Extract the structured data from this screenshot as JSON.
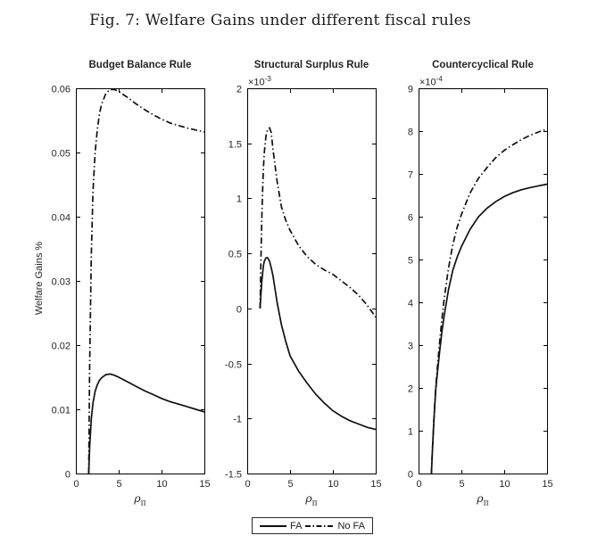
{
  "figure_title": "Fig. 7: Welfare Gains under different fiscal rules",
  "ylabel": "Welfare Gains %",
  "xaxis": {
    "rho": "ρ",
    "pi": "π"
  },
  "legend": {
    "fa_label": "FA",
    "nofa_label": "No FA"
  },
  "colors": {
    "line": "#101010",
    "axis": "#000000",
    "text": "#262626"
  },
  "chart_data": [
    {
      "type": "line",
      "title": "Budget Balance Rule",
      "xlabel": "ρ_π",
      "ylabel": "Welfare Gains %",
      "xlim": [
        0,
        15
      ],
      "ylim": [
        0,
        0.06
      ],
      "xticks": [
        0,
        5,
        10,
        15
      ],
      "xtick_labels": [
        "0",
        "5",
        "10",
        "15"
      ],
      "yticks": [
        0,
        0.01,
        0.02,
        0.03,
        0.04,
        0.05,
        0.06
      ],
      "ytick_labels": [
        "0",
        "0.01",
        "0.02",
        "0.03",
        "0.04",
        "0.05",
        "0.06"
      ],
      "x": [
        1.5,
        1.6,
        1.8,
        2,
        2.25,
        2.5,
        2.75,
        3,
        3.5,
        4,
        4.5,
        5,
        6,
        7,
        8,
        9,
        10,
        11,
        12,
        13,
        14,
        15
      ],
      "series": [
        {
          "name": "FA",
          "style": "solid",
          "values": [
            0,
            0.004,
            0.0085,
            0.011,
            0.0128,
            0.0138,
            0.0145,
            0.0149,
            0.0154,
            0.0155,
            0.0153,
            0.015,
            0.0143,
            0.0136,
            0.0129,
            0.0123,
            0.0117,
            0.0112,
            0.0108,
            0.0104,
            0.01,
            0.0096
          ]
        },
        {
          "name": "No FA",
          "style": "dashdot",
          "values": [
            0,
            0.016,
            0.034,
            0.044,
            0.05,
            0.0535,
            0.056,
            0.0575,
            0.0592,
            0.0598,
            0.0598,
            0.0595,
            0.0586,
            0.0576,
            0.0567,
            0.0559,
            0.0552,
            0.0546,
            0.0542,
            0.0538,
            0.0535,
            0.0532
          ]
        }
      ]
    },
    {
      "type": "line",
      "title": "Structural Surplus Rule",
      "xlabel": "ρ_π",
      "exponent_base": "×10",
      "exponent_power": "-3",
      "unit_scale": "1e-3",
      "xlim": [
        0,
        15
      ],
      "ylim": [
        -1.5,
        2
      ],
      "xticks": [
        0,
        5,
        10,
        15
      ],
      "xtick_labels": [
        "0",
        "5",
        "10",
        "15"
      ],
      "yticks": [
        -1.5,
        -1,
        -0.5,
        0,
        0.5,
        1,
        1.5,
        2
      ],
      "ytick_labels": [
        "-1.5",
        "-1",
        "-0.5",
        "0",
        "0.5",
        "1",
        "1.5",
        "2"
      ],
      "x": [
        1.5,
        1.6,
        1.7,
        1.8,
        1.9,
        2,
        2.2,
        2.4,
        2.6,
        2.8,
        3,
        3.5,
        4,
        4.5,
        5,
        6,
        7,
        8,
        9,
        10,
        11,
        12,
        13,
        14,
        15
      ],
      "series": [
        {
          "name": "FA",
          "style": "solid",
          "values": [
            0,
            0.13,
            0.24,
            0.32,
            0.39,
            0.43,
            0.46,
            0.46,
            0.43,
            0.37,
            0.3,
            0.05,
            -0.15,
            -0.3,
            -0.43,
            -0.57,
            -0.68,
            -0.78,
            -0.86,
            -0.93,
            -0.98,
            -1.02,
            -1.05,
            -1.08,
            -1.1
          ]
        },
        {
          "name": "No FA",
          "style": "dashdot",
          "values": [
            0,
            0.45,
            0.8,
            1.08,
            1.28,
            1.42,
            1.57,
            1.63,
            1.64,
            1.6,
            1.45,
            1.15,
            0.92,
            0.8,
            0.71,
            0.57,
            0.47,
            0.4,
            0.35,
            0.31,
            0.25,
            0.19,
            0.12,
            0.03,
            -0.08
          ]
        }
      ]
    },
    {
      "type": "line",
      "title": "Countercyclical Rule",
      "xlabel": "ρ_π",
      "exponent_base": "×10",
      "exponent_power": "-4",
      "unit_scale": "1e-4",
      "xlim": [
        0,
        15
      ],
      "ylim": [
        0,
        9
      ],
      "xticks": [
        0,
        5,
        10,
        15
      ],
      "xtick_labels": [
        "0",
        "5",
        "10",
        "15"
      ],
      "yticks": [
        0,
        1,
        2,
        3,
        4,
        5,
        6,
        7,
        8,
        9
      ],
      "ytick_labels": [
        "0",
        "1",
        "2",
        "3",
        "4",
        "5",
        "6",
        "7",
        "8",
        "9"
      ],
      "x": [
        1.5,
        1.6,
        1.8,
        2,
        2.25,
        2.5,
        2.75,
        3,
        3.5,
        4,
        4.5,
        5,
        6,
        7,
        8,
        9,
        10,
        11,
        12,
        13,
        14,
        15
      ],
      "series": [
        {
          "name": "FA",
          "style": "solid",
          "values": [
            0,
            0.48,
            1.28,
            1.95,
            2.45,
            2.92,
            3.35,
            3.7,
            4.3,
            4.75,
            5.05,
            5.3,
            5.7,
            6.0,
            6.2,
            6.35,
            6.47,
            6.56,
            6.63,
            6.68,
            6.72,
            6.76
          ]
        },
        {
          "name": "No FA",
          "style": "dashdot",
          "values": [
            0,
            0.5,
            1.3,
            2.0,
            2.6,
            3.15,
            3.65,
            4.1,
            4.8,
            5.35,
            5.75,
            6.05,
            6.55,
            6.9,
            7.15,
            7.38,
            7.55,
            7.68,
            7.8,
            7.9,
            7.98,
            8.05
          ]
        }
      ]
    }
  ]
}
